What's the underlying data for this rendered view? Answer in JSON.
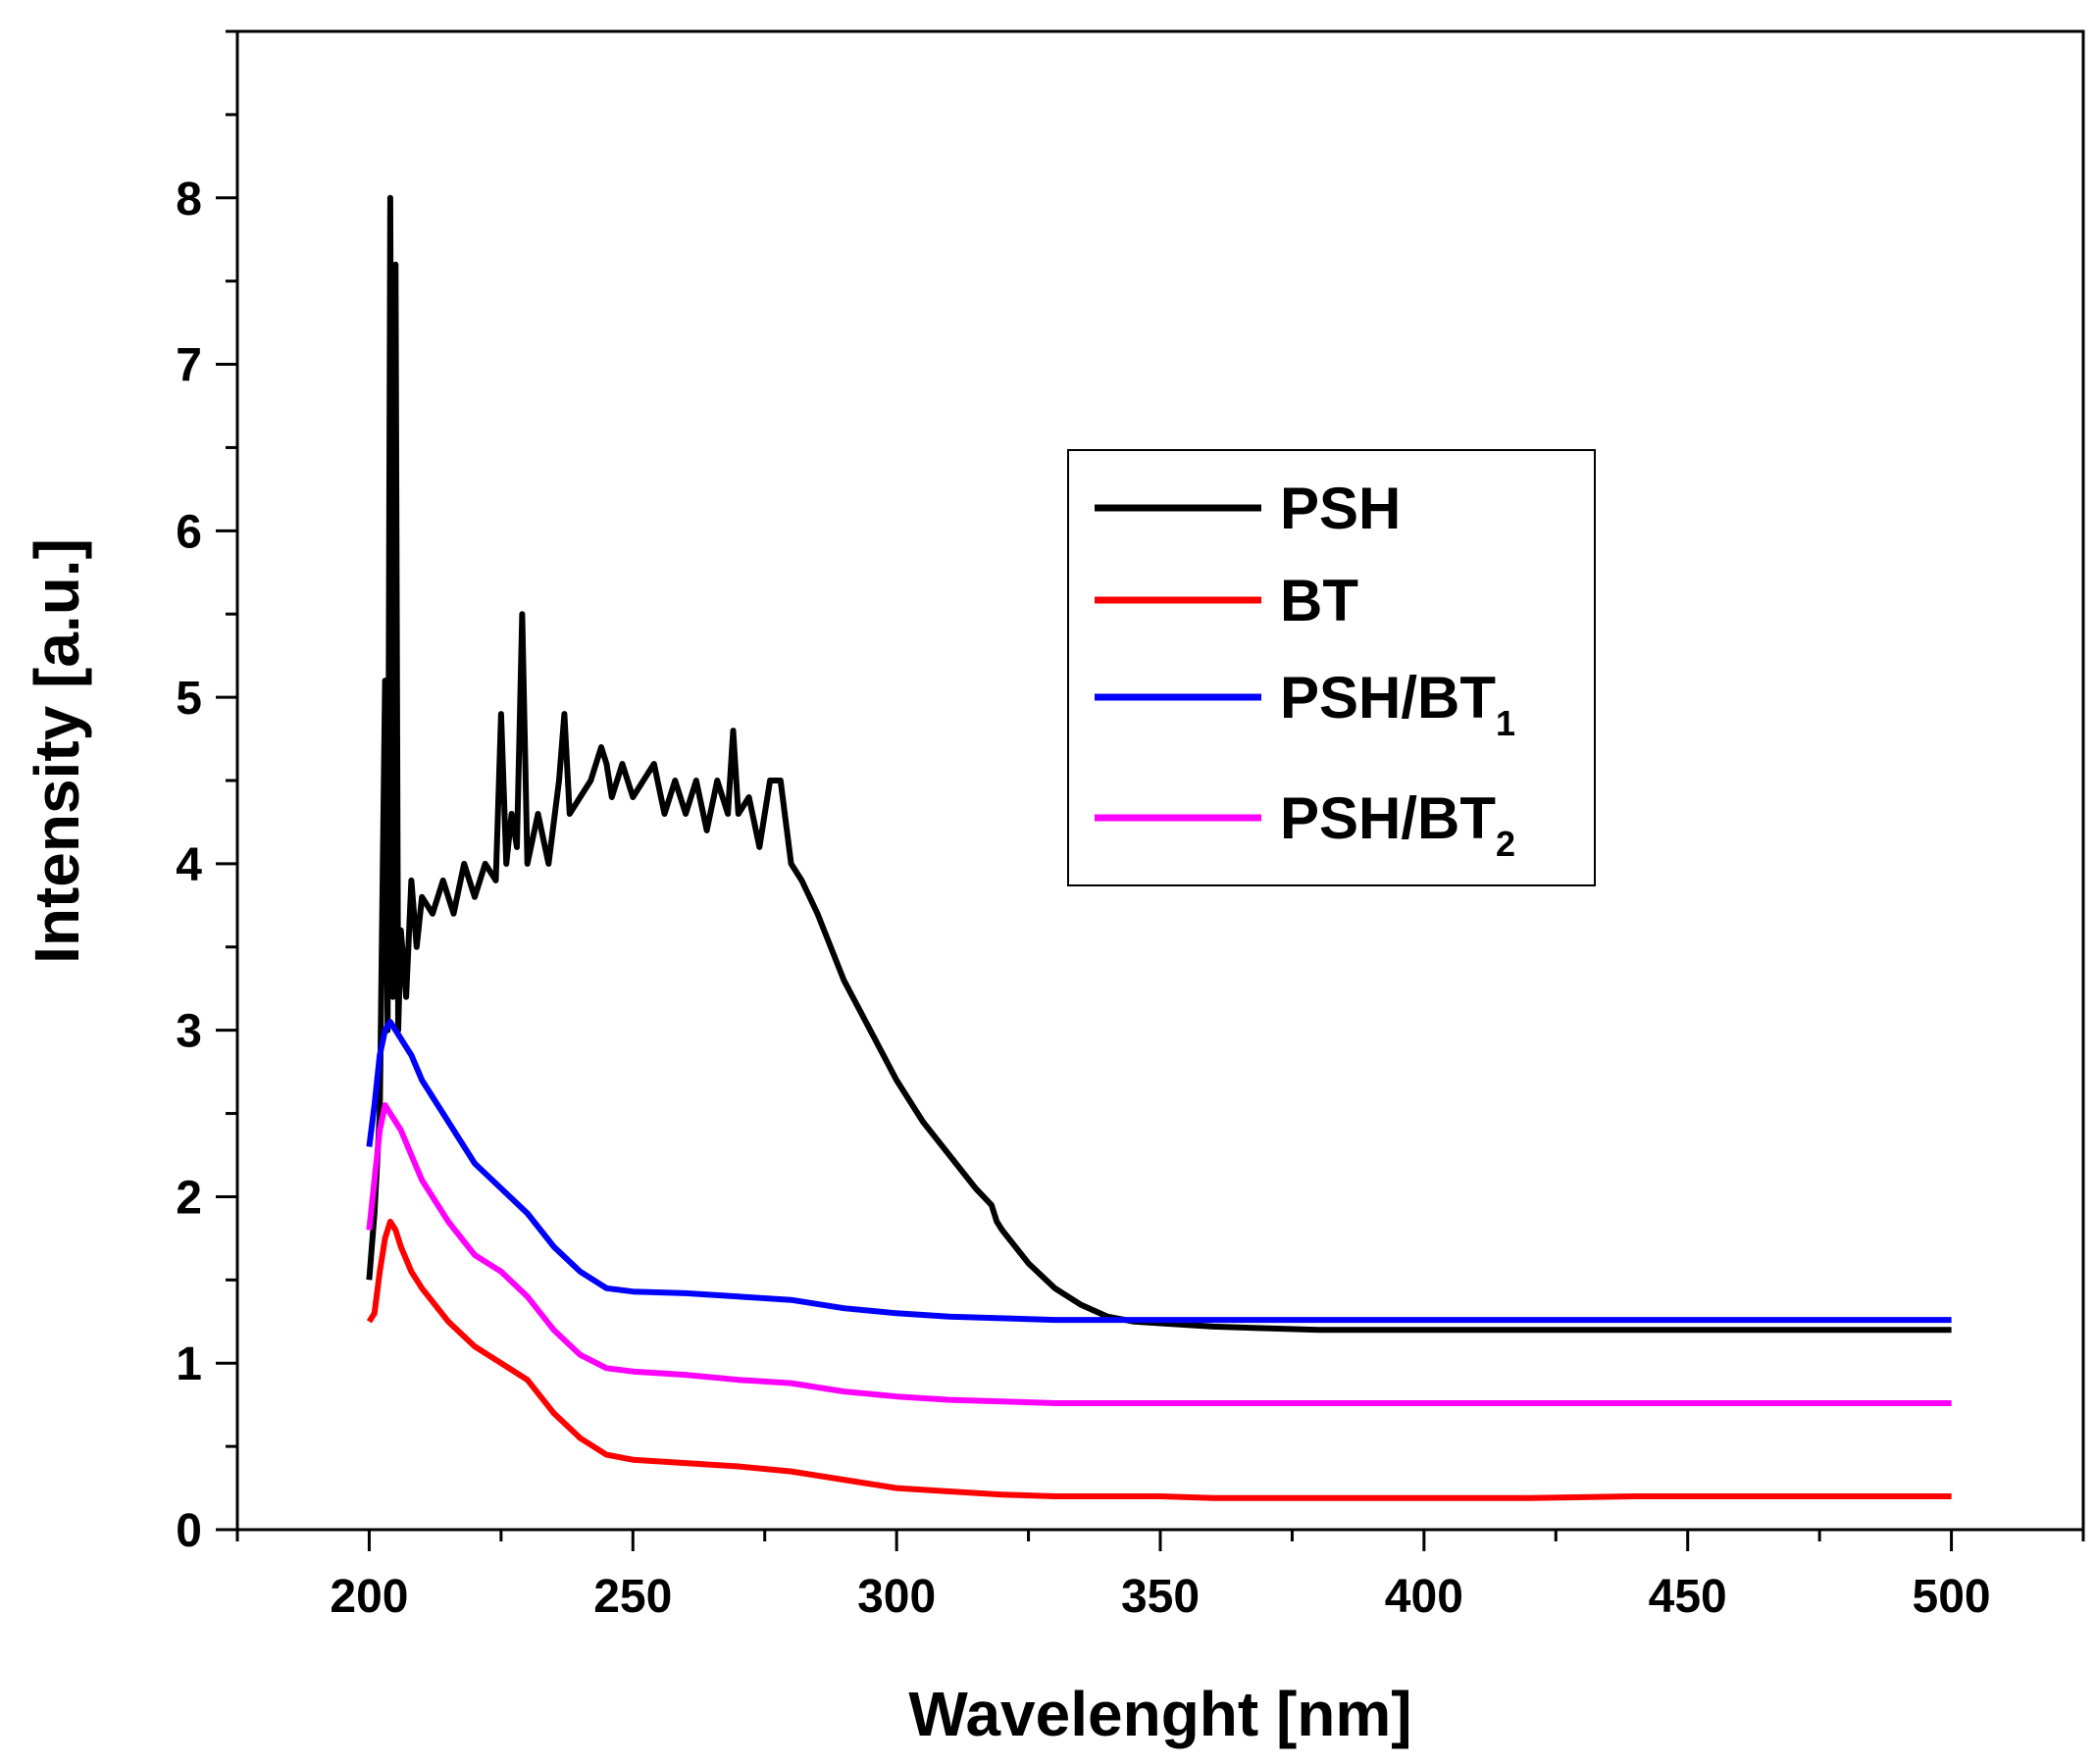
{
  "chart_data": {
    "type": "line",
    "title": "",
    "xlabel": "Wavelenght [nm]",
    "ylabel": "Intensity [a.u.]",
    "xlim": [
      175,
      525
    ],
    "ylim": [
      0,
      9
    ],
    "xticks": [
      200,
      250,
      300,
      350,
      400,
      450,
      500
    ],
    "yticks": [
      0,
      1,
      2,
      3,
      4,
      5,
      6,
      7,
      8
    ],
    "legend_position": "top-right",
    "series": [
      {
        "name": "PSH",
        "color": "#000000",
        "x": [
          200,
          201,
          202,
          203,
          203.5,
          204,
          204.5,
          205,
          205.5,
          206,
          207,
          208,
          209,
          210,
          212,
          214,
          216,
          218,
          220,
          222,
          224,
          225,
          226,
          227,
          228,
          229,
          230,
          232,
          234,
          236,
          237,
          238,
          240,
          242,
          244,
          245,
          246,
          248,
          250,
          252,
          254,
          256,
          258,
          260,
          262,
          264,
          266,
          268,
          269,
          270,
          272,
          274,
          276,
          278,
          280,
          282,
          285,
          290,
          295,
          300,
          305,
          310,
          315,
          318,
          319,
          320,
          325,
          330,
          335,
          340,
          345,
          350,
          360,
          370,
          380,
          400,
          420,
          440,
          460,
          480,
          500
        ],
        "y": [
          1.5,
          1.9,
          2.5,
          5.1,
          3.0,
          8.0,
          3.2,
          7.6,
          3.0,
          3.6,
          3.2,
          3.9,
          3.5,
          3.8,
          3.7,
          3.9,
          3.7,
          4.0,
          3.8,
          4.0,
          3.9,
          4.9,
          4.0,
          4.3,
          4.1,
          5.5,
          4.0,
          4.3,
          4.0,
          4.5,
          4.9,
          4.3,
          4.4,
          4.5,
          4.7,
          4.6,
          4.4,
          4.6,
          4.4,
          4.5,
          4.6,
          4.3,
          4.5,
          4.3,
          4.5,
          4.2,
          4.5,
          4.3,
          4.8,
          4.3,
          4.4,
          4.1,
          4.5,
          4.5,
          4.0,
          3.9,
          3.7,
          3.3,
          3.0,
          2.7,
          2.45,
          2.25,
          2.05,
          1.95,
          1.85,
          1.8,
          1.6,
          1.45,
          1.35,
          1.28,
          1.25,
          1.24,
          1.22,
          1.21,
          1.2,
          1.2,
          1.2,
          1.2,
          1.2,
          1.2,
          1.2
        ]
      },
      {
        "name": "BT",
        "color": "#ff0000",
        "x": [
          200,
          201,
          202,
          203,
          204,
          205,
          206,
          208,
          210,
          215,
          220,
          225,
          230,
          235,
          240,
          245,
          250,
          260,
          270,
          280,
          290,
          300,
          310,
          320,
          330,
          340,
          350,
          360,
          380,
          400,
          420,
          440,
          460,
          480,
          500
        ],
        "y": [
          1.25,
          1.3,
          1.55,
          1.75,
          1.85,
          1.8,
          1.7,
          1.55,
          1.45,
          1.25,
          1.1,
          1.0,
          0.9,
          0.7,
          0.55,
          0.45,
          0.42,
          0.4,
          0.38,
          0.35,
          0.3,
          0.25,
          0.23,
          0.21,
          0.2,
          0.2,
          0.2,
          0.19,
          0.19,
          0.19,
          0.19,
          0.2,
          0.2,
          0.2,
          0.2
        ]
      },
      {
        "name": "PSH/BT1",
        "color": "#0000ff",
        "x": [
          200,
          201,
          202,
          203,
          204,
          205,
          206,
          208,
          210,
          215,
          220,
          225,
          230,
          235,
          240,
          245,
          250,
          260,
          270,
          280,
          290,
          300,
          310,
          320,
          330,
          340,
          350,
          360,
          380,
          400,
          420,
          440,
          460,
          480,
          500
        ],
        "y": [
          2.3,
          2.55,
          2.85,
          3.0,
          3.05,
          3.0,
          2.95,
          2.85,
          2.7,
          2.45,
          2.2,
          2.05,
          1.9,
          1.7,
          1.55,
          1.45,
          1.43,
          1.42,
          1.4,
          1.38,
          1.33,
          1.3,
          1.28,
          1.27,
          1.26,
          1.26,
          1.26,
          1.26,
          1.26,
          1.26,
          1.26,
          1.26,
          1.26,
          1.26,
          1.26
        ]
      },
      {
        "name": "PSH/BT2",
        "color": "#ff00ff",
        "x": [
          200,
          201,
          202,
          203,
          204,
          205,
          206,
          208,
          210,
          215,
          220,
          225,
          230,
          235,
          240,
          245,
          250,
          260,
          270,
          280,
          290,
          300,
          310,
          320,
          330,
          340,
          350,
          360,
          380,
          400,
          420,
          440,
          460,
          480,
          500
        ],
        "y": [
          1.8,
          2.1,
          2.4,
          2.55,
          2.5,
          2.45,
          2.4,
          2.25,
          2.1,
          1.85,
          1.65,
          1.55,
          1.4,
          1.2,
          1.05,
          0.97,
          0.95,
          0.93,
          0.9,
          0.88,
          0.83,
          0.8,
          0.78,
          0.77,
          0.76,
          0.76,
          0.76,
          0.76,
          0.76,
          0.76,
          0.76,
          0.76,
          0.76,
          0.76,
          0.76
        ]
      }
    ]
  },
  "legend": {
    "items": [
      {
        "label": "PSH",
        "sub": ""
      },
      {
        "label": "BT",
        "sub": ""
      },
      {
        "label": "PSH/BT",
        "sub": "1"
      },
      {
        "label": "PSH/BT",
        "sub": "2"
      }
    ]
  }
}
